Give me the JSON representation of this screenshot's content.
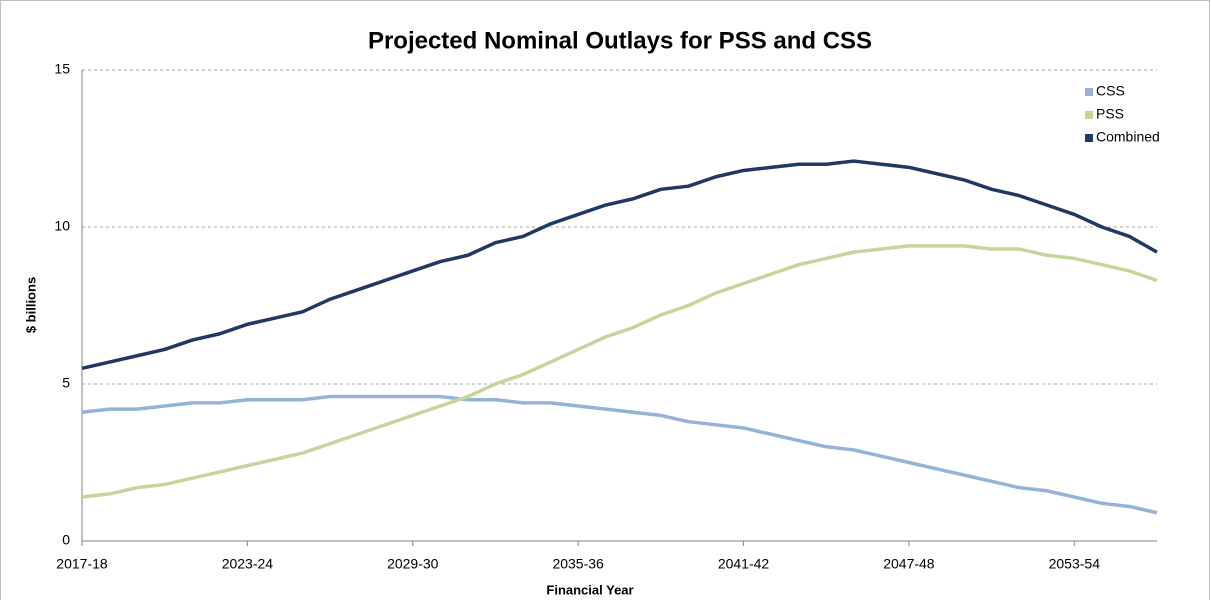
{
  "chart_data": {
    "type": "line",
    "title": "Projected Nominal Outlays for PSS and CSS",
    "x_label": "Financial Year",
    "y_label": "$ billions",
    "categories": [
      "2017-18",
      null,
      null,
      null,
      null,
      null,
      "2023-24",
      null,
      null,
      null,
      null,
      null,
      "2029-30",
      null,
      null,
      null,
      null,
      null,
      "2035-36",
      null,
      null,
      null,
      null,
      null,
      "2041-42",
      null,
      null,
      null,
      null,
      null,
      "2047-48",
      null,
      null,
      null,
      null,
      null,
      "2053-54",
      null,
      null,
      null
    ],
    "series": [
      {
        "name": "CSS",
        "color": "#95b3d7",
        "values": [
          4.1,
          4.2,
          4.2,
          4.3,
          4.4,
          4.4,
          4.5,
          4.5,
          4.5,
          4.6,
          4.6,
          4.6,
          4.6,
          4.6,
          4.5,
          4.5,
          4.4,
          4.4,
          4.3,
          4.2,
          4.1,
          4.0,
          3.8,
          3.7,
          3.6,
          3.4,
          3.2,
          3.0,
          2.9,
          2.7,
          2.5,
          2.3,
          2.1,
          1.9,
          1.7,
          1.6,
          1.4,
          1.2,
          1.1,
          0.9
        ]
      },
      {
        "name": "PSS",
        "color": "#c3d69b",
        "values": [
          1.4,
          1.5,
          1.7,
          1.8,
          2.0,
          2.2,
          2.4,
          2.6,
          2.8,
          3.1,
          3.4,
          3.7,
          4.0,
          4.3,
          4.6,
          5.0,
          5.3,
          5.7,
          6.1,
          6.5,
          6.8,
          7.2,
          7.5,
          7.9,
          8.2,
          8.5,
          8.8,
          9.0,
          9.2,
          9.3,
          9.4,
          9.4,
          9.4,
          9.3,
          9.3,
          9.1,
          9.0,
          8.8,
          8.6,
          8.3
        ]
      },
      {
        "name": "Combined",
        "color": "#1f3864",
        "values": [
          5.5,
          5.7,
          5.9,
          6.1,
          6.4,
          6.6,
          6.9,
          7.1,
          7.3,
          7.7,
          8.0,
          8.3,
          8.6,
          8.9,
          9.1,
          9.5,
          9.7,
          10.1,
          10.4,
          10.7,
          10.9,
          11.2,
          11.3,
          11.6,
          11.8,
          11.9,
          12.0,
          12.0,
          12.1,
          12.0,
          11.9,
          11.7,
          11.5,
          11.2,
          11.0,
          10.7,
          10.4,
          10.0,
          9.7,
          9.2
        ]
      }
    ],
    "ylim": [
      0,
      15
    ],
    "yticks": [
      0,
      5,
      10,
      15
    ],
    "grid": true,
    "legend": "top-right"
  }
}
